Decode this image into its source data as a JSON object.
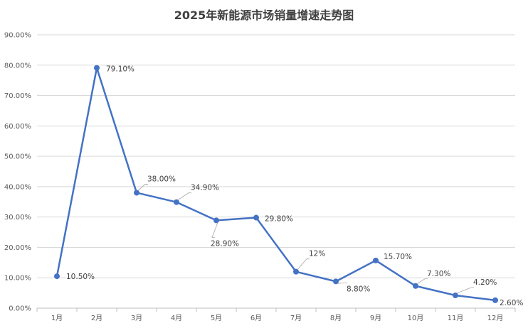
{
  "chart_data": {
    "type": "line",
    "title": "2025年新能源市场销量增速走势图",
    "categories": [
      "1月",
      "2月",
      "3月",
      "4月",
      "5月",
      "6月",
      "7月",
      "8月",
      "9月",
      "10月",
      "11月",
      "12月"
    ],
    "values": [
      10.5,
      79.1,
      38.0,
      34.9,
      28.9,
      29.8,
      12.0,
      8.8,
      15.7,
      7.3,
      4.2,
      2.6
    ],
    "data_labels": [
      "10.50%",
      "79.10%",
      "38.00%",
      "34.90%",
      "28.90%",
      "29.80%",
      "12%",
      "8.80%",
      "15.70%",
      "7.30%",
      "4.20%",
      "2.60%"
    ],
    "y_ticks": [
      "0.00%",
      "10.00%",
      "20.00%",
      "30.00%",
      "40.00%",
      "50.00%",
      "60.00%",
      "70.00%",
      "80.00%",
      "90.00%"
    ],
    "ylim": [
      0,
      90
    ],
    "grid": true,
    "legend": "none",
    "series_color": "#4472C4"
  }
}
